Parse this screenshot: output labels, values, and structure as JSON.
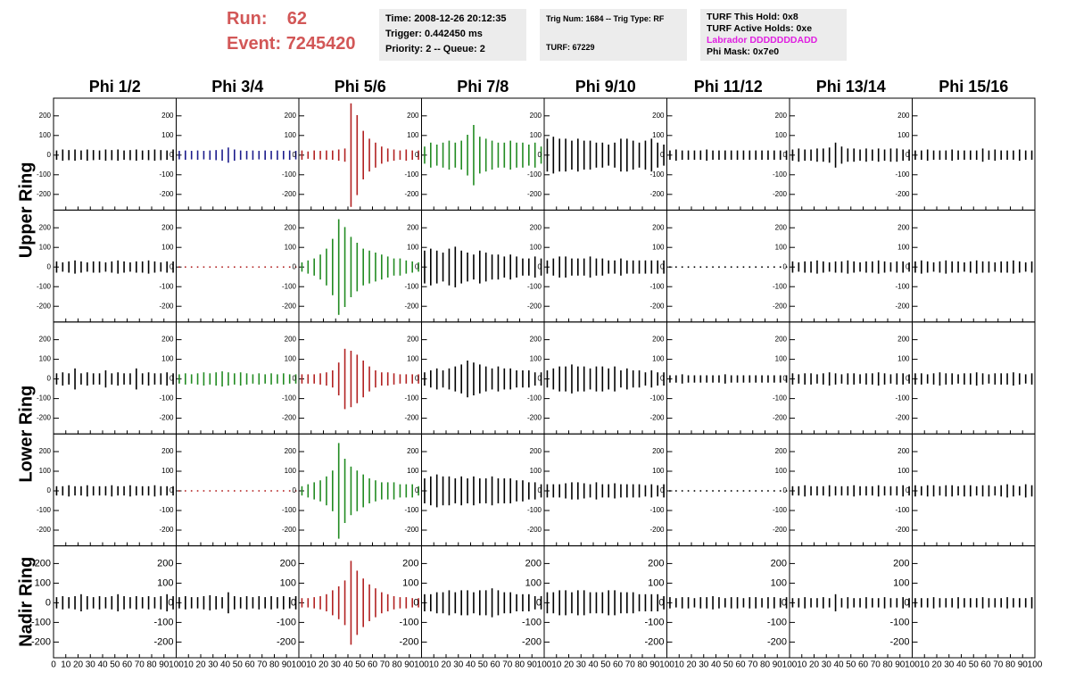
{
  "header": {
    "run_label": "Run:",
    "run": 62,
    "event_label": "Event:",
    "event": 7245420
  },
  "info": [
    [
      "Time: 2008-12-26 20:12:35",
      "Trigger: 0.442450 ms",
      "Priority: 2 -- Queue: 2"
    ],
    [
      "Trig Num: 1684 -- Trig Type: RF",
      "TURF: 67229"
    ],
    [
      "TURF This Hold: 0x8",
      "TURF Active Holds: 0xe",
      "Labrador DDDDDDDADD",
      "Phi Mask: 0x7e0"
    ]
  ],
  "columns": [
    "Phi 1/2",
    "Phi 3/4",
    "Phi 5/6",
    "Phi 7/8",
    "Phi 9/10",
    "Phi 11/12",
    "Phi 13/14",
    "Phi 15/16"
  ],
  "ring_labels": [
    "Upper Ring",
    "Lower Ring",
    "Nadir Ring"
  ],
  "axes": {
    "xlim": [
      0,
      100
    ],
    "ylim": [
      -280,
      290
    ],
    "xticks": [
      0,
      10,
      20,
      30,
      40,
      50,
      60,
      70,
      80,
      90,
      100
    ],
    "yticks": [
      -200,
      -100,
      0,
      100,
      200
    ],
    "x": [
      2.5,
      7.5,
      12.5,
      17.5,
      22.5,
      27.5,
      32.5,
      37.5,
      42.5,
      47.5,
      52.5,
      57.5,
      62.5,
      67.5,
      72.5,
      77.5,
      82.5,
      87.5,
      92.5,
      97.5
    ]
  },
  "panels": [
    [
      {
        "color": "#000000",
        "values": [
          20,
          25,
          22,
          25,
          20,
          25,
          22,
          20,
          25,
          22,
          25,
          20,
          22,
          25,
          20,
          22,
          25,
          22,
          20,
          25
        ]
      },
      {
        "color": "#1c1c8c",
        "values": [
          18,
          20,
          18,
          20,
          18,
          20,
          22,
          25,
          35,
          25,
          20,
          18,
          20,
          18,
          20,
          18,
          20,
          18,
          20,
          18
        ]
      },
      {
        "color": "#b22222",
        "values": [
          20,
          15,
          20,
          18,
          20,
          20,
          25,
          30,
          260,
          200,
          120,
          80,
          60,
          40,
          30,
          25,
          20,
          25,
          20,
          20
        ]
      },
      {
        "color": "#228b22",
        "values": [
          40,
          60,
          50,
          60,
          70,
          60,
          70,
          100,
          150,
          90,
          80,
          70,
          60,
          60,
          70,
          60,
          60,
          50,
          60,
          40
        ]
      },
      {
        "color": "#000000",
        "values": [
          80,
          90,
          80,
          80,
          70,
          80,
          70,
          70,
          60,
          60,
          50,
          60,
          80,
          80,
          70,
          60,
          70,
          80,
          60,
          50
        ]
      },
      {
        "color": "#000000",
        "values": [
          20,
          25,
          20,
          20,
          20,
          20,
          25,
          20,
          20,
          20,
          20,
          20,
          20,
          20,
          20,
          20,
          20,
          20,
          20,
          20
        ]
      },
      {
        "color": "#000000",
        "values": [
          25,
          30,
          25,
          25,
          30,
          30,
          35,
          60,
          40,
          30,
          30,
          25,
          30,
          25,
          30,
          25,
          30,
          30,
          25,
          25
        ]
      },
      {
        "color": "#000000",
        "values": [
          20,
          20,
          25,
          20,
          20,
          20,
          25,
          20,
          20,
          20,
          20,
          30,
          20,
          25,
          20,
          20,
          20,
          25,
          20,
          20
        ]
      }
    ],
    [
      {
        "color": "#000000",
        "values": [
          25,
          20,
          25,
          30,
          25,
          20,
          25,
          25,
          20,
          25,
          30,
          25,
          20,
          25,
          25,
          30,
          25,
          20,
          25,
          25
        ]
      },
      {
        "color": "#b22222",
        "values": [
          0,
          0,
          0,
          0,
          0,
          0,
          0,
          0,
          0,
          0,
          0,
          0,
          0,
          0,
          0,
          0,
          0,
          0,
          0,
          0
        ]
      },
      {
        "color": "#228b22",
        "values": [
          20,
          30,
          40,
          60,
          90,
          140,
          240,
          200,
          150,
          120,
          90,
          80,
          70,
          60,
          50,
          40,
          40,
          30,
          25,
          20
        ]
      },
      {
        "color": "#000000",
        "values": [
          80,
          90,
          80,
          70,
          90,
          100,
          80,
          70,
          60,
          80,
          70,
          60,
          60,
          50,
          60,
          50,
          40,
          40,
          50,
          40
        ]
      },
      {
        "color": "#000000",
        "values": [
          30,
          40,
          50,
          50,
          40,
          40,
          40,
          50,
          40,
          40,
          30,
          30,
          40,
          30,
          30,
          30,
          30,
          30,
          30,
          30
        ]
      },
      {
        "color": "#000000",
        "values": [
          0,
          0,
          0,
          0,
          0,
          0,
          0,
          0,
          0,
          0,
          0,
          0,
          0,
          0,
          0,
          0,
          0,
          0,
          0,
          0
        ]
      },
      {
        "color": "#000000",
        "values": [
          25,
          20,
          25,
          25,
          30,
          25,
          20,
          25,
          25,
          30,
          25,
          20,
          25,
          25,
          30,
          25,
          20,
          25,
          25,
          20
        ]
      },
      {
        "color": "#000000",
        "values": [
          25,
          30,
          25,
          20,
          25,
          30,
          25,
          25,
          20,
          25,
          30,
          25,
          25,
          20,
          25,
          25,
          30,
          25,
          20,
          25
        ]
      }
    ],
    [
      {
        "color": "#000000",
        "values": [
          25,
          30,
          25,
          50,
          25,
          30,
          25,
          25,
          40,
          25,
          30,
          25,
          25,
          50,
          25,
          30,
          25,
          25,
          30,
          25
        ]
      },
      {
        "color": "#228b22",
        "values": [
          20,
          25,
          20,
          25,
          30,
          25,
          30,
          35,
          30,
          25,
          30,
          25,
          20,
          25,
          20,
          25,
          20,
          25,
          20,
          20
        ]
      },
      {
        "color": "#b22222",
        "values": [
          20,
          20,
          20,
          25,
          30,
          40,
          80,
          150,
          140,
          120,
          90,
          60,
          40,
          30,
          30,
          25,
          20,
          20,
          20,
          20
        ]
      },
      {
        "color": "#000000",
        "values": [
          30,
          40,
          50,
          40,
          50,
          60,
          70,
          90,
          80,
          70,
          60,
          50,
          60,
          50,
          50,
          40,
          40,
          40,
          30,
          30
        ]
      },
      {
        "color": "#000000",
        "values": [
          40,
          50,
          60,
          60,
          70,
          60,
          60,
          50,
          60,
          60,
          50,
          60,
          40,
          50,
          40,
          40,
          30,
          40,
          30,
          30
        ]
      },
      {
        "color": "#000000",
        "values": [
          15,
          15,
          20,
          15,
          15,
          15,
          15,
          15,
          15,
          20,
          15,
          15,
          15,
          15,
          15,
          15,
          15,
          15,
          15,
          15
        ]
      },
      {
        "color": "#000000",
        "values": [
          25,
          20,
          25,
          25,
          20,
          25,
          30,
          25,
          20,
          25,
          25,
          20,
          25,
          25,
          30,
          25,
          20,
          25,
          25,
          20
        ]
      },
      {
        "color": "#000000",
        "values": [
          25,
          25,
          20,
          25,
          30,
          25,
          25,
          20,
          25,
          25,
          30,
          25,
          20,
          25,
          25,
          25,
          30,
          25,
          20,
          25
        ]
      }
    ],
    [
      {
        "color": "#000000",
        "values": [
          20,
          20,
          25,
          20,
          20,
          25,
          20,
          20,
          20,
          25,
          20,
          20,
          25,
          20,
          20,
          20,
          25,
          20,
          20,
          20
        ]
      },
      {
        "color": "#b22222",
        "values": [
          0,
          0,
          0,
          0,
          0,
          0,
          0,
          0,
          0,
          0,
          0,
          0,
          0,
          0,
          0,
          0,
          0,
          0,
          0,
          0
        ]
      },
      {
        "color": "#228b22",
        "values": [
          20,
          30,
          40,
          50,
          70,
          100,
          240,
          160,
          120,
          100,
          80,
          60,
          50,
          40,
          40,
          40,
          30,
          30,
          30,
          20
        ]
      },
      {
        "color": "#000000",
        "values": [
          60,
          70,
          80,
          70,
          70,
          60,
          70,
          60,
          70,
          60,
          60,
          70,
          60,
          60,
          60,
          50,
          50,
          40,
          40,
          30
        ]
      },
      {
        "color": "#000000",
        "values": [
          30,
          30,
          30,
          35,
          40,
          40,
          35,
          30,
          40,
          30,
          30,
          35,
          30,
          30,
          30,
          30,
          25,
          30,
          25,
          30
        ]
      },
      {
        "color": "#000000",
        "values": [
          0,
          0,
          0,
          0,
          0,
          0,
          0,
          0,
          0,
          0,
          0,
          0,
          0,
          0,
          0,
          0,
          0,
          0,
          0,
          0
        ]
      },
      {
        "color": "#000000",
        "values": [
          20,
          20,
          25,
          20,
          20,
          20,
          25,
          20,
          20,
          20,
          25,
          20,
          20,
          20,
          25,
          20,
          20,
          20,
          25,
          20
        ]
      },
      {
        "color": "#000000",
        "values": [
          25,
          20,
          25,
          25,
          20,
          25,
          25,
          20,
          25,
          25,
          20,
          25,
          25,
          20,
          25,
          30,
          25,
          20,
          30,
          25
        ]
      }
    ],
    [
      {
        "color": "#000000",
        "values": [
          25,
          30,
          25,
          30,
          40,
          30,
          25,
          30,
          25,
          30,
          40,
          30,
          25,
          30,
          25,
          30,
          25,
          30,
          40,
          30
        ]
      },
      {
        "color": "#000000",
        "values": [
          25,
          30,
          25,
          25,
          30,
          35,
          30,
          25,
          50,
          30,
          25,
          30,
          25,
          30,
          25,
          30,
          25,
          30,
          25,
          30
        ]
      },
      {
        "color": "#b22222",
        "values": [
          20,
          20,
          25,
          30,
          40,
          60,
          80,
          110,
          210,
          160,
          120,
          90,
          70,
          50,
          40,
          30,
          25,
          25,
          20,
          20
        ]
      },
      {
        "color": "#000000",
        "values": [
          40,
          40,
          50,
          50,
          60,
          50,
          60,
          60,
          50,
          60,
          60,
          70,
          60,
          50,
          50,
          40,
          40,
          40,
          30,
          30
        ]
      },
      {
        "color": "#000000",
        "values": [
          50,
          50,
          60,
          60,
          50,
          60,
          60,
          50,
          50,
          50,
          60,
          60,
          50,
          50,
          50,
          40,
          40,
          40,
          40,
          30
        ]
      },
      {
        "color": "#000000",
        "values": [
          25,
          20,
          25,
          25,
          20,
          25,
          25,
          30,
          25,
          20,
          25,
          25,
          20,
          25,
          25,
          20,
          25,
          25,
          20,
          25
        ]
      },
      {
        "color": "#000000",
        "values": [
          20,
          20,
          25,
          20,
          20,
          25,
          20,
          40,
          20,
          25,
          20,
          20,
          25,
          20,
          20,
          25,
          20,
          20,
          25,
          20
        ]
      },
      {
        "color": "#000000",
        "values": [
          20,
          20,
          20,
          25,
          20,
          20,
          20,
          25,
          20,
          20,
          20,
          25,
          20,
          20,
          20,
          25,
          20,
          20,
          20,
          25
        ]
      }
    ]
  ]
}
